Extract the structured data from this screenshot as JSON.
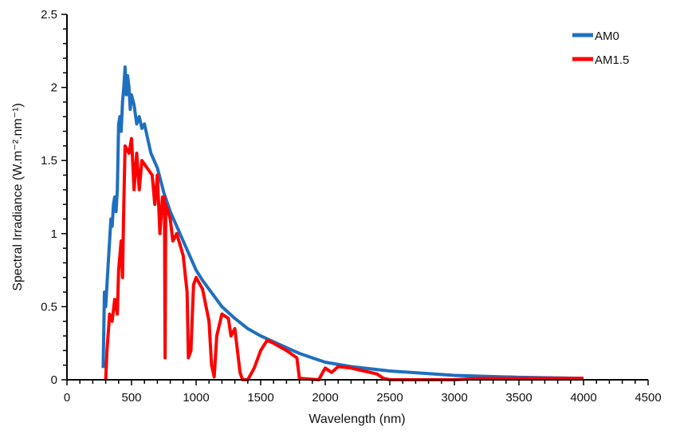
{
  "chart_data": {
    "type": "line",
    "title": "",
    "xlabel": "Wavelength (nm)",
    "ylabel": "Spectral Irradiance (W.m⁻².nm⁻¹)",
    "xlim": [
      0,
      4500
    ],
    "ylim": [
      0,
      2.5
    ],
    "xticks": [
      "0",
      "500",
      "1000",
      "1500",
      "2000",
      "2500",
      "3000",
      "3500",
      "4000",
      "4500"
    ],
    "yticks": [
      "0",
      "0.5",
      "1",
      "1.5",
      "2",
      "2.5"
    ],
    "grid": false,
    "legend_position": "top-right",
    "series": [
      {
        "name": "AM0",
        "color": "#1f6fbf",
        "x": [
          280,
          290,
          300,
          310,
          320,
          330,
          340,
          350,
          360,
          370,
          380,
          390,
          400,
          410,
          420,
          430,
          440,
          450,
          460,
          470,
          480,
          490,
          500,
          520,
          540,
          560,
          580,
          600,
          650,
          700,
          750,
          800,
          850,
          900,
          950,
          1000,
          1050,
          1100,
          1150,
          1200,
          1300,
          1400,
          1500,
          1600,
          1700,
          1800,
          2000,
          2200,
          2500,
          3000,
          3500,
          4000
        ],
        "y": [
          0.08,
          0.6,
          0.5,
          0.65,
          0.8,
          0.95,
          1.1,
          1.05,
          1.2,
          1.25,
          1.15,
          1.3,
          1.75,
          1.8,
          1.7,
          1.9,
          2.0,
          2.14,
          1.95,
          2.08,
          2.0,
          1.85,
          1.95,
          1.88,
          1.75,
          1.8,
          1.72,
          1.75,
          1.55,
          1.45,
          1.28,
          1.15,
          1.05,
          0.95,
          0.85,
          0.75,
          0.68,
          0.62,
          0.56,
          0.5,
          0.42,
          0.35,
          0.3,
          0.26,
          0.22,
          0.18,
          0.12,
          0.09,
          0.06,
          0.03,
          0.017,
          0.01
        ]
      },
      {
        "name": "AM1.5",
        "color": "#ff0000",
        "x": [
          300,
          310,
          330,
          350,
          370,
          390,
          400,
          420,
          430,
          440,
          450,
          480,
          500,
          520,
          540,
          560,
          580,
          620,
          660,
          680,
          700,
          720,
          740,
          755,
          760,
          765,
          800,
          820,
          850,
          900,
          930,
          940,
          960,
          980,
          1000,
          1050,
          1100,
          1120,
          1140,
          1160,
          1200,
          1250,
          1270,
          1300,
          1340,
          1360,
          1400,
          1450,
          1500,
          1550,
          1600,
          1700,
          1780,
          1800,
          1950,
          1980,
          2000,
          2050,
          2100,
          2200,
          2300,
          2400,
          2450,
          2500,
          3000,
          3200,
          4000
        ],
        "y": [
          0,
          0.2,
          0.45,
          0.4,
          0.55,
          0.45,
          0.75,
          0.95,
          0.7,
          1.2,
          1.6,
          1.55,
          1.65,
          1.3,
          1.55,
          1.3,
          1.5,
          1.45,
          1.4,
          1.2,
          1.4,
          1.0,
          1.25,
          1.25,
          0.15,
          1.2,
          1.1,
          0.95,
          1.0,
          0.85,
          0.6,
          0.15,
          0.2,
          0.65,
          0.7,
          0.62,
          0.4,
          0.1,
          0.02,
          0.3,
          0.45,
          0.42,
          0.3,
          0.35,
          0.05,
          0,
          0,
          0.08,
          0.2,
          0.27,
          0.25,
          0.2,
          0.15,
          0.01,
          0,
          0.05,
          0.08,
          0.05,
          0.09,
          0.08,
          0.06,
          0.04,
          0.01,
          0,
          0,
          0.01,
          0.01
        ]
      }
    ]
  }
}
